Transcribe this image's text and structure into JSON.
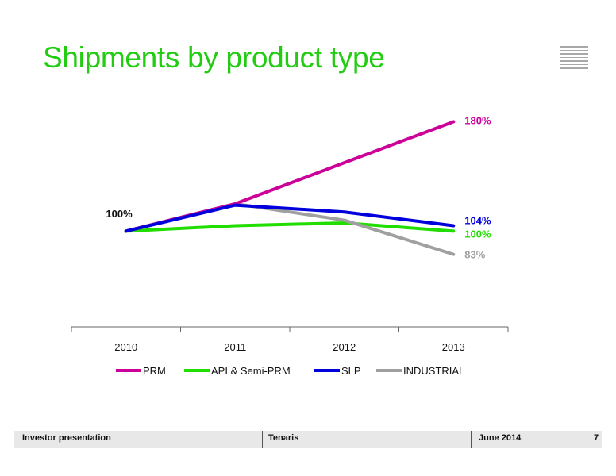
{
  "slide": {
    "title": "Shipments by product type"
  },
  "footer": {
    "left": "Investor presentation",
    "center": "Tenaris",
    "date": "June 2014",
    "page": "7"
  },
  "chart_data": {
    "type": "line",
    "categories": [
      "2010",
      "2011",
      "2012",
      "2013"
    ],
    "ylim": [
      30,
      200
    ],
    "grid": false,
    "legend_position": "bottom",
    "start_label": "100%",
    "series": [
      {
        "name": "PRM",
        "color": "#cc0099",
        "values": [
          100,
          120,
          150,
          180
        ],
        "end_label": "180%"
      },
      {
        "name": "API & Semi-PRM",
        "color": "#22dd00",
        "values": [
          100,
          104,
          106,
          100
        ],
        "end_label": "100%"
      },
      {
        "name": "SLP",
        "color": "#0000dd",
        "values": [
          100,
          119,
          114,
          104
        ],
        "end_label": "104%"
      },
      {
        "name": "INDUSTRIAL",
        "color": "#a0a0a0",
        "values": [
          100,
          120,
          108,
          83
        ],
        "end_label": "83%"
      }
    ]
  }
}
